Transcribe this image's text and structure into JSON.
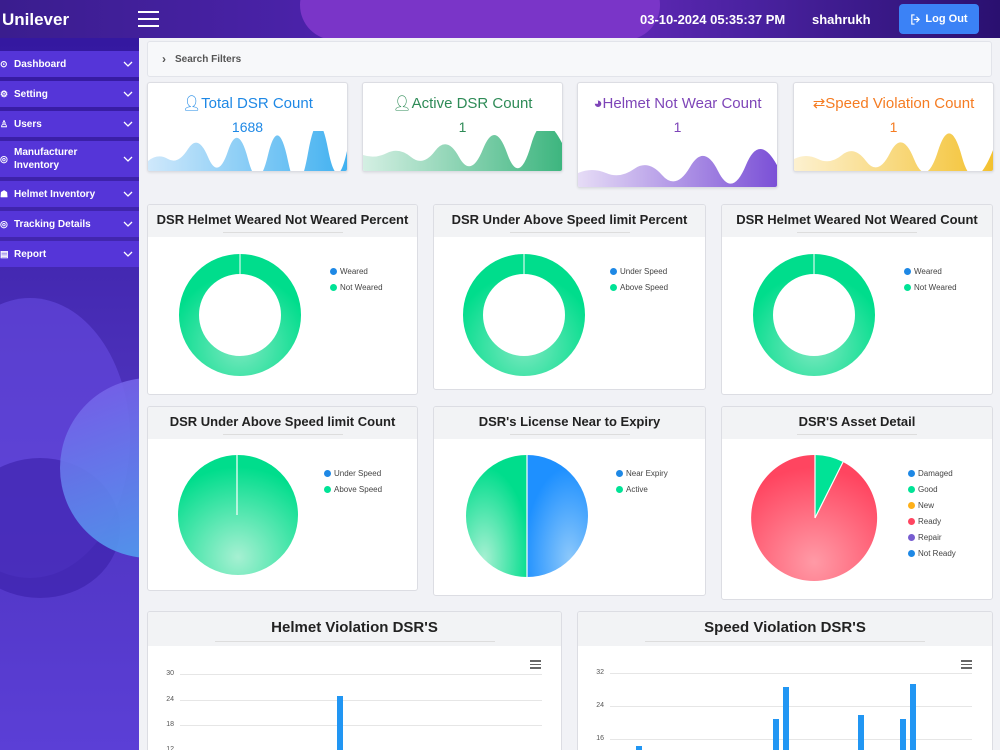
{
  "header": {
    "brand": "Unilever",
    "datetime": "03-10-2024 05:35:37 PM",
    "username": "shahrukh",
    "logout_label": "Log Out"
  },
  "sidebar": {
    "items": [
      {
        "label": "Dashboard",
        "icon": "dashboard-icon"
      },
      {
        "label": "Setting",
        "icon": "gear-icon"
      },
      {
        "label": "Users",
        "icon": "user-icon"
      },
      {
        "label": "Manufacturer Inventory",
        "icon": "location-icon"
      },
      {
        "label": "Helmet Inventory",
        "icon": "helmet-icon"
      },
      {
        "label": "Tracking Details",
        "icon": "location-icon"
      },
      {
        "label": "Report",
        "icon": "report-icon"
      }
    ]
  },
  "search": {
    "label": "Search Filters"
  },
  "cards": [
    {
      "title": "Total DSR Count",
      "value": "1688",
      "color": "#1e88e5"
    },
    {
      "title": "Active DSR Count",
      "value": "1",
      "color": "#2e8b57"
    },
    {
      "title": "Helmet Not Wear Count",
      "value": "1",
      "color": "#7e45b8"
    },
    {
      "title": "Speed Violation Count",
      "value": "1",
      "color": "#f57c22"
    }
  ],
  "panels": [
    {
      "title": "DSR Helmet Weared Not Weared Percent",
      "legend": [
        "Weared",
        "Not Weared"
      ]
    },
    {
      "title": "DSR Under Above Speed limit Percent",
      "legend": [
        "Under Speed",
        "Above Speed"
      ]
    },
    {
      "title": "DSR Helmet Weared Not Weared Count",
      "legend": [
        "Weared",
        "Not Weared"
      ]
    },
    {
      "title": "DSR Under Above Speed limit Count",
      "legend": [
        "Under Speed",
        "Above Speed"
      ]
    },
    {
      "title": "DSR's License Near to Expiry",
      "legend": [
        "Near Expiry",
        "Active"
      ]
    },
    {
      "title": "DSR'S Asset Detail",
      "legend": [
        "Damaged",
        "Good",
        "New",
        "Ready",
        "Repair",
        "Not Ready"
      ]
    }
  ],
  "colors": {
    "blue": "#1e88e5",
    "green": "#00e396",
    "orange": "#feb019",
    "red": "#ff4560",
    "purple": "#775dd0",
    "bar": "#2196f3"
  },
  "helmet_chart": {
    "title": "Helmet Violation DSR'S",
    "yticks": [
      "30",
      "24",
      "18",
      "12"
    ]
  },
  "speed_chart": {
    "title": "Speed Violation DSR'S",
    "yticks": [
      "32",
      "24",
      "16"
    ],
    "data_labels": [
      "28",
      "30"
    ]
  },
  "chart_data": [
    {
      "type": "pie",
      "title": "DSR Helmet Weared Not Weared Percent",
      "donut": true,
      "labels": [
        "Weared",
        "Not Weared"
      ],
      "values": [
        0,
        100
      ]
    },
    {
      "type": "pie",
      "title": "DSR Under Above Speed limit Percent",
      "donut": true,
      "labels": [
        "Under Speed",
        "Above Speed"
      ],
      "values": [
        0,
        100
      ]
    },
    {
      "type": "pie",
      "title": "DSR Helmet Weared Not Weared Count",
      "donut": true,
      "labels": [
        "Weared",
        "Not Weared"
      ],
      "values": [
        0,
        1
      ]
    },
    {
      "type": "pie",
      "title": "DSR Under Above Speed limit Count",
      "labels": [
        "Under Speed",
        "Above Speed"
      ],
      "values": [
        0,
        1
      ]
    },
    {
      "type": "pie",
      "title": "DSR's License Near to Expiry",
      "labels": [
        "Near Expiry",
        "Active"
      ],
      "values": [
        50,
        50
      ]
    },
    {
      "type": "pie",
      "title": "DSR'S Asset Detail",
      "labels": [
        "Damaged",
        "Good",
        "New",
        "Ready",
        "Repair",
        "Not Ready"
      ],
      "values": [
        0,
        7,
        0,
        93,
        0,
        0
      ]
    },
    {
      "type": "bar",
      "title": "Helmet Violation DSR'S",
      "ylim": [
        0,
        30
      ],
      "values": [
        25
      ]
    },
    {
      "type": "bar",
      "title": "Speed Violation DSR'S",
      "ylim": [
        0,
        32
      ],
      "values": [
        14,
        20,
        28,
        21,
        20,
        30
      ]
    }
  ]
}
